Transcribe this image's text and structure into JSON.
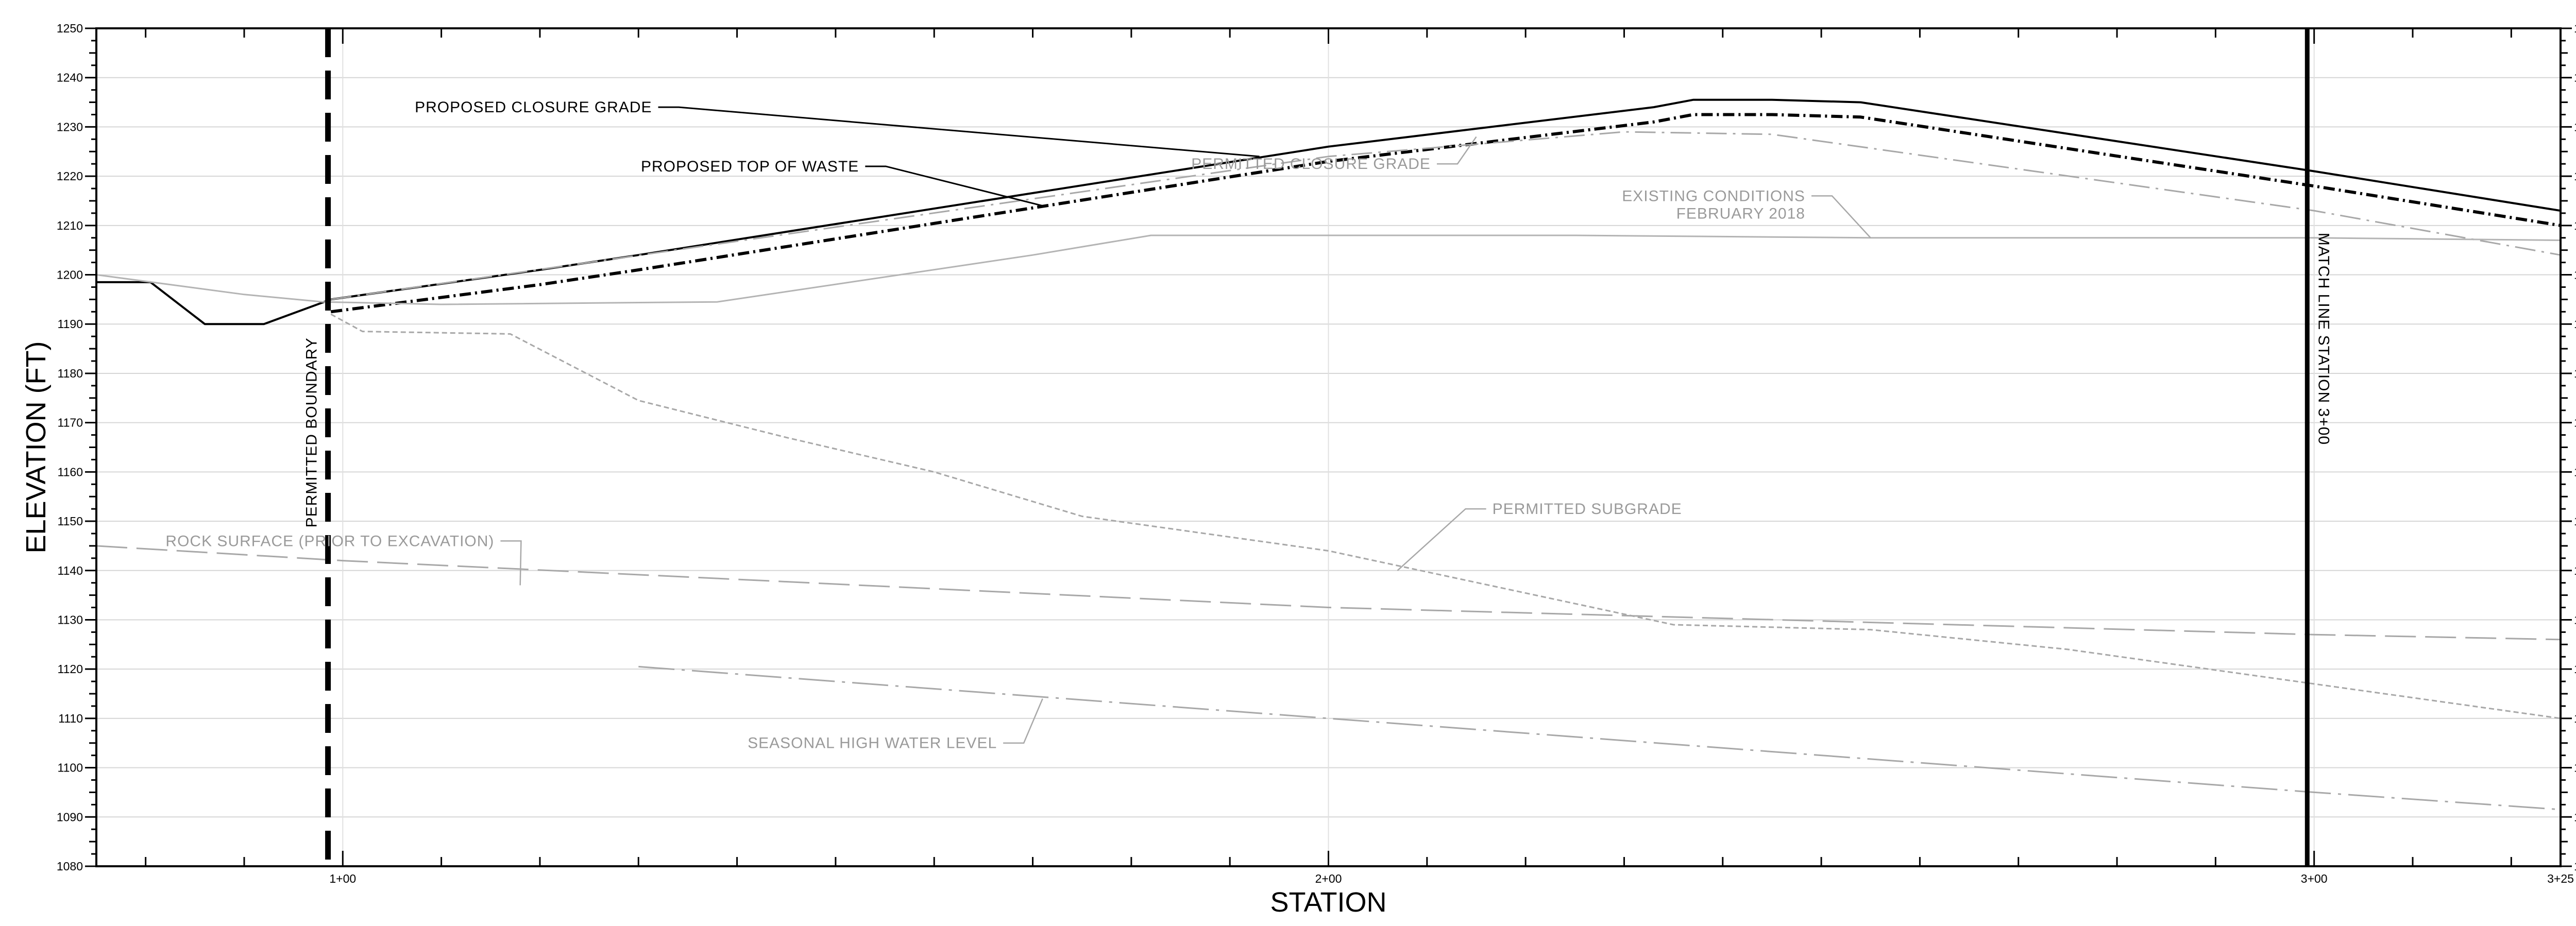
{
  "chart_data": {
    "type": "line",
    "xlabel": "STATION",
    "ylabel": "ELEVATION (FT)",
    "xlim": [
      75,
      325
    ],
    "ylim": [
      1080,
      1250
    ],
    "y_ticks": [
      1080,
      1090,
      1100,
      1110,
      1120,
      1130,
      1140,
      1150,
      1160,
      1170,
      1180,
      1190,
      1200,
      1210,
      1220,
      1230,
      1240,
      1250
    ],
    "x_ticks": [
      {
        "x": 100,
        "label": "1+00"
      },
      {
        "x": 200,
        "label": "2+00"
      },
      {
        "x": 300,
        "label": "3+00"
      },
      {
        "x": 325,
        "label": "3+25"
      }
    ],
    "grid": true,
    "vertical_markers": [
      {
        "x": 98.5,
        "label": "PERMITTED BOUNDARY",
        "style": "dashed-heavy"
      },
      {
        "x": 299.3,
        "label": "MATCH LINE STATION 3+00",
        "style": "solid-heavy"
      }
    ],
    "series": [
      {
        "name": "PROPOSED CLOSURE GRADE",
        "style": "solid",
        "color": "#000000",
        "points": [
          [
            75,
            1198.5
          ],
          [
            80.5,
            1198.5
          ],
          [
            86,
            1190
          ],
          [
            92,
            1190
          ],
          [
            98.8,
            1195
          ],
          [
            120,
            1201
          ],
          [
            130,
            1204
          ],
          [
            200,
            1226
          ],
          [
            233,
            1234
          ],
          [
            237,
            1235.5
          ],
          [
            245,
            1235.5
          ],
          [
            254,
            1235
          ],
          [
            300,
            1221
          ],
          [
            325,
            1213
          ]
        ]
      },
      {
        "name": "PROPOSED TOP OF WASTE",
        "style": "dash-dot-heavy",
        "color": "#000000",
        "points": [
          [
            98.8,
            1192.5
          ],
          [
            120,
            1198
          ],
          [
            130,
            1201
          ],
          [
            200,
            1223
          ],
          [
            233,
            1231
          ],
          [
            237,
            1232.5
          ],
          [
            245,
            1232.5
          ],
          [
            254,
            1232
          ],
          [
            300,
            1218
          ],
          [
            325,
            1210
          ]
        ]
      },
      {
        "name": "PERMITTED CLOSURE GRADE",
        "style": "dash-dot",
        "color": "#a8a8a8",
        "points": [
          [
            98.8,
            1195
          ],
          [
            200,
            1224
          ],
          [
            230,
            1229
          ],
          [
            245,
            1228.5
          ],
          [
            300,
            1213
          ],
          [
            325,
            1204
          ]
        ]
      },
      {
        "name": "EXISTING CONDITIONS FEBRUARY 2018",
        "style": "solid-light",
        "color": "#b4b4b4",
        "points": [
          [
            75,
            1200
          ],
          [
            90,
            1196
          ],
          [
            98,
            1194.5
          ],
          [
            110,
            1194
          ],
          [
            138,
            1194.5
          ],
          [
            170,
            1204
          ],
          [
            182,
            1208
          ],
          [
            225,
            1208
          ],
          [
            255,
            1207.5
          ],
          [
            300,
            1207.5
          ],
          [
            325,
            1207
          ]
        ]
      },
      {
        "name": "PERMITTED SUBGRADE",
        "style": "dashed-fine",
        "color": "#a8a8a8",
        "points": [
          [
            98.8,
            1192
          ],
          [
            102,
            1188.5
          ],
          [
            117,
            1188
          ],
          [
            130,
            1174.5
          ],
          [
            145,
            1167
          ],
          [
            160,
            1160
          ],
          [
            175,
            1151
          ],
          [
            200,
            1144
          ],
          [
            235,
            1129
          ],
          [
            255,
            1128
          ],
          [
            275,
            1124
          ],
          [
            300,
            1117
          ],
          [
            325,
            1110
          ]
        ]
      },
      {
        "name": "ROCK SURFACE (PRIOR TO EXCAVATION)",
        "style": "long-dash",
        "color": "#a8a8a8",
        "points": [
          [
            75,
            1145
          ],
          [
            100,
            1142
          ],
          [
            200,
            1132.5
          ],
          [
            300,
            1127
          ],
          [
            325,
            1126
          ]
        ]
      },
      {
        "name": "SEASONAL HIGH WATER LEVEL",
        "style": "dash-dot-long",
        "color": "#a8a8a8",
        "points": [
          [
            130,
            1120.5
          ],
          [
            200,
            1110
          ],
          [
            300,
            1095
          ],
          [
            325,
            1091.5
          ]
        ]
      }
    ],
    "annotations": [
      {
        "text": "PROPOSED CLOSURE GRADE",
        "series": 0,
        "tone": "dark",
        "anchor_x": 132,
        "anchor_y": 1234,
        "point_x": 193,
        "point_y": 1224
      },
      {
        "text": "PROPOSED TOP OF WASTE",
        "series": 1,
        "tone": "dark",
        "anchor_x": 153,
        "anchor_y": 1222,
        "point_x": 171,
        "point_y": 1214
      },
      {
        "text": "PERMITTED CLOSURE GRADE",
        "series": 2,
        "tone": "gray",
        "anchor_x": 211,
        "anchor_y": 1222.5,
        "point_x": 215,
        "point_y": 1228
      },
      {
        "text": "EXISTING CONDITIONS",
        "text2": "FEBRUARY 2018",
        "series": 3,
        "tone": "gray",
        "anchor_x": 249,
        "anchor_y": 1216,
        "point_x": 255,
        "point_y": 1207.5
      },
      {
        "text": "PERMITTED SUBGRADE",
        "series": 4,
        "tone": "gray",
        "anchor_x": 216,
        "anchor_y": 1152.5,
        "point_x": 207,
        "point_y": 1140
      },
      {
        "text": "ROCK SURFACE (PRIOR TO EXCAVATION)",
        "series": 5,
        "tone": "gray",
        "anchor_x": 116,
        "anchor_y": 1146,
        "point_x": 118,
        "point_y": 1137
      },
      {
        "text": "SEASONAL HIGH WATER LEVEL",
        "series": 6,
        "tone": "gray",
        "anchor_x": 167,
        "anchor_y": 1105,
        "point_x": 171,
        "point_y": 1114
      }
    ]
  }
}
